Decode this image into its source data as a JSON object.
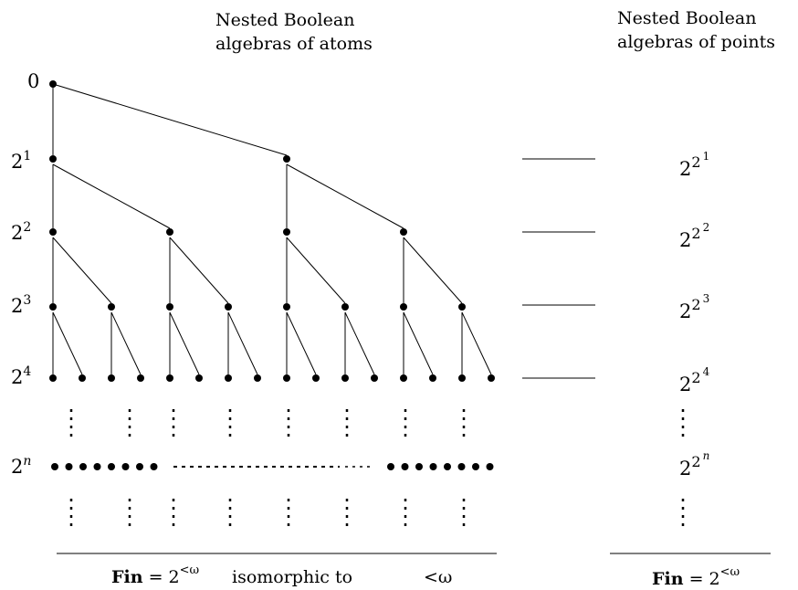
{
  "headers": {
    "atoms": [
      "Nested Boolean",
      "algebras of atoms"
    ],
    "points": [
      "Nested Boolean",
      "algebras of points"
    ]
  },
  "level_labels": [
    {
      "text": "0"
    },
    {
      "base": "2",
      "exp": "1"
    },
    {
      "base": "2",
      "exp": "2"
    },
    {
      "base": "2",
      "exp": "3"
    },
    {
      "base": "2",
      "exp": "4"
    },
    {
      "base": "2",
      "exp": "n"
    }
  ],
  "point_labels": [
    {
      "base": "2",
      "sup_base": "2",
      "sup_exp": "1"
    },
    {
      "base": "2",
      "sup_base": "2",
      "sup_exp": "2"
    },
    {
      "base": "2",
      "sup_base": "2",
      "sup_exp": "3"
    },
    {
      "base": "2",
      "sup_base": "2",
      "sup_exp": "4"
    },
    {
      "base": "2",
      "sup_base": "2",
      "sup_exp": "n"
    }
  ],
  "footer_left": {
    "bold": "Fin",
    "eq": " = 2",
    "sup": "<ω",
    "middle": "isomorphic to",
    "right": "<ω"
  },
  "footer_right": {
    "bold": "Fin",
    "eq": " = 2",
    "sup": "<ω"
  },
  "colors": {
    "ink": "#000000",
    "background": "#ffffff"
  }
}
